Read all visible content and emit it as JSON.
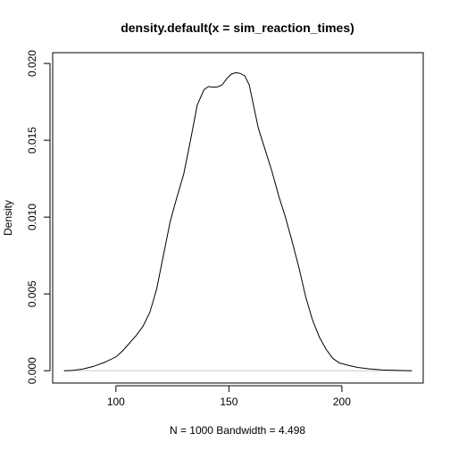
{
  "chart_data": {
    "type": "line",
    "title": "density.default(x = sim_reaction_times)",
    "xlabel": "N = 1000   Bandwidth = 4.498",
    "ylabel": "Density",
    "xlim": [
      72,
      236
    ],
    "ylim": [
      -0.0008,
      0.0207
    ],
    "grid": false,
    "legend": "none",
    "colors": {
      "line": "#000000",
      "zero_line": "#cccccc",
      "frame": "#000000"
    },
    "x_ticks": [
      100,
      150,
      200
    ],
    "x_tick_labels": [
      "100",
      "150",
      "200"
    ],
    "y_ticks": [
      0.0,
      0.005,
      0.01,
      0.015,
      0.02
    ],
    "y_tick_labels": [
      "0.000",
      "0.005",
      "0.010",
      "0.015",
      "0.020"
    ],
    "series": [
      {
        "x": [
          77,
          80,
          85,
          90,
          95,
          100,
          103,
          106,
          109,
          112,
          115,
          118,
          121,
          124,
          127,
          130,
          133,
          136,
          139,
          141,
          143,
          145,
          147,
          149,
          151,
          153,
          155,
          157,
          159,
          161,
          163,
          166,
          169,
          172,
          175,
          178,
          181,
          184,
          187,
          190,
          193,
          196,
          199,
          203,
          207,
          212,
          218,
          225,
          231
        ],
        "y": [
          0.0,
          1e-05,
          0.0001,
          0.00028,
          0.00055,
          0.0009,
          0.0013,
          0.0018,
          0.0023,
          0.0029,
          0.0038,
          0.0053,
          0.0075,
          0.0097,
          0.0113,
          0.0128,
          0.015,
          0.0173,
          0.0183,
          0.0185,
          0.01845,
          0.01848,
          0.0186,
          0.019,
          0.0193,
          0.0194,
          0.01935,
          0.0192,
          0.0186,
          0.0172,
          0.0158,
          0.0144,
          0.013,
          0.0114,
          0.01,
          0.0084,
          0.0067,
          0.0048,
          0.0033,
          0.0022,
          0.0014,
          0.0008,
          0.0005,
          0.00035,
          0.00022,
          0.00012,
          5e-05,
          2e-05,
          0.0
        ]
      }
    ]
  }
}
